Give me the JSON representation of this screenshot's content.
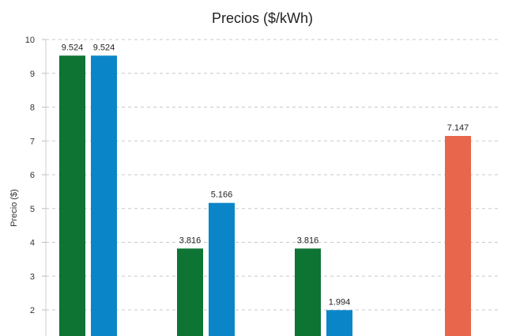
{
  "chart_data": {
    "type": "bar",
    "title": "Precios ($/kWh)",
    "ylabel": "Precio ($)",
    "xlabel": "",
    "ylim": [
      1.2,
      10
    ],
    "yticks": [
      2,
      3,
      4,
      5,
      6,
      7,
      8,
      9,
      10
    ],
    "grid": true,
    "gridStyle": "dashed",
    "bars": [
      {
        "group": 0,
        "value": 9.524,
        "label": "9.524",
        "color": "#0d7434"
      },
      {
        "group": 0,
        "value": 9.524,
        "label": "9.524",
        "color": "#0a86c8"
      },
      {
        "group": 1,
        "value": 3.816,
        "label": "3.816",
        "color": "#0d7434"
      },
      {
        "group": 1,
        "value": 5.166,
        "label": "5.166",
        "color": "#0a86c8"
      },
      {
        "group": 2,
        "value": 3.816,
        "label": "3.816",
        "color": "#0d7434"
      },
      {
        "group": 2,
        "value": 1.994,
        "label": "1.994",
        "color": "#0a86c8"
      },
      {
        "group": 3,
        "value": 7.147,
        "label": "7.147",
        "color": "#e8664c"
      }
    ]
  }
}
